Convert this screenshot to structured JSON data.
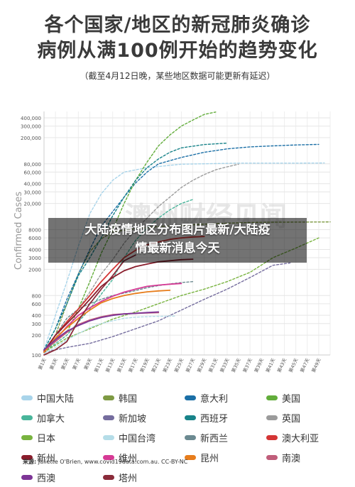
{
  "title": {
    "line1": "各个国家/地区的新冠肺炎确诊",
    "line2": "病例从满100例开始的趋势变化",
    "subtitle": "（截至4月12日晚，某些地区数据可能更新有延迟）"
  },
  "watermark_text": "澳洲财经见闻",
  "overlay": {
    "line1": "大陆疫情地区分布图片最新/大陆疫",
    "line2": "情最新消息今天"
  },
  "source": {
    "label": "来源:",
    "text": "Juliette O'Brien, www.covid19data.com.au. CC-BY-NC"
  },
  "chart_data": {
    "type": "line",
    "ylabel": "Confirmed Cases",
    "yscale": "log",
    "ylim": [
      100,
      500000
    ],
    "y_ticks": [
      {
        "value": 100,
        "label": "100"
      },
      {
        "value": 200,
        "label": "200"
      },
      {
        "value": 300,
        "label": "300"
      },
      {
        "value": 400,
        "label": "400"
      },
      {
        "value": 600,
        "label": "600"
      },
      {
        "value": 800,
        "label": "800"
      },
      {
        "value": 2000,
        "label": "2000"
      },
      {
        "value": 3000,
        "label": "3000"
      },
      {
        "value": 4000,
        "label": "4000"
      },
      {
        "value": 6000,
        "label": "6000"
      },
      {
        "value": 8000,
        "label": "8000"
      },
      {
        "value": 20000,
        "label": "20,000"
      },
      {
        "value": 30000,
        "label": "30,000"
      },
      {
        "value": 40000,
        "label": "40,000"
      },
      {
        "value": 60000,
        "label": "60,000"
      },
      {
        "value": 80000,
        "label": "80,000"
      },
      {
        "value": 200000,
        "label": "200,000"
      },
      {
        "value": 300000,
        "label": "300,000"
      },
      {
        "value": 400000,
        "label": "400,000"
      }
    ],
    "xlim": [
      1,
      51
    ],
    "x_ticks": [
      {
        "value": 1,
        "label": "第1天"
      },
      {
        "value": 3,
        "label": "第3天"
      },
      {
        "value": 5,
        "label": "第5天"
      },
      {
        "value": 7,
        "label": "第7天"
      },
      {
        "value": 9,
        "label": "第9天"
      },
      {
        "value": 11,
        "label": "第11天"
      },
      {
        "value": 13,
        "label": "第13天"
      },
      {
        "value": 15,
        "label": "第15天"
      },
      {
        "value": 17,
        "label": "第17天"
      },
      {
        "value": 19,
        "label": "第19天"
      },
      {
        "value": 21,
        "label": "第21天"
      },
      {
        "value": 23,
        "label": "第23天"
      },
      {
        "value": 25,
        "label": "第25天"
      },
      {
        "value": 27,
        "label": "第27天"
      },
      {
        "value": 29,
        "label": "第29天"
      },
      {
        "value": 31,
        "label": "第31天"
      },
      {
        "value": 33,
        "label": "第33天"
      },
      {
        "value": 35,
        "label": "第35天"
      },
      {
        "value": 37,
        "label": "第37天"
      },
      {
        "value": 39,
        "label": "第39天"
      },
      {
        "value": 41,
        "label": "第41天"
      },
      {
        "value": 43,
        "label": "第43天"
      },
      {
        "value": 45,
        "label": "第45天"
      },
      {
        "value": 47,
        "label": "第47天"
      },
      {
        "value": 49,
        "label": "第49天"
      }
    ],
    "grid": true,
    "legend_placement": "bottom",
    "series": [
      {
        "name": "中国大陆",
        "color": "#a8d4ea",
        "dashed": true,
        "points": [
          [
            1,
            120
          ],
          [
            3,
            400
          ],
          [
            5,
            1300
          ],
          [
            7,
            4500
          ],
          [
            9,
            14000
          ],
          [
            11,
            28000
          ],
          [
            13,
            45000
          ],
          [
            15,
            60000
          ],
          [
            19,
            70000
          ],
          [
            25,
            79000
          ],
          [
            35,
            82000
          ],
          [
            45,
            82000
          ],
          [
            50,
            82500
          ]
        ]
      },
      {
        "name": "韩国",
        "color": "#7e9a43",
        "dashed": true,
        "points": [
          [
            1,
            110
          ],
          [
            3,
            200
          ],
          [
            5,
            600
          ],
          [
            7,
            1700
          ],
          [
            9,
            3700
          ],
          [
            11,
            5800
          ],
          [
            13,
            7400
          ],
          [
            17,
            8300
          ],
          [
            21,
            8900
          ],
          [
            25,
            9300
          ],
          [
            31,
            9900
          ],
          [
            37,
            10300
          ],
          [
            41,
            10400
          ],
          [
            51,
            10500
          ]
        ]
      },
      {
        "name": "意大利",
        "color": "#1b6fa6",
        "dashed": true,
        "points": [
          [
            1,
            120
          ],
          [
            3,
            250
          ],
          [
            5,
            700
          ],
          [
            7,
            1700
          ],
          [
            9,
            4000
          ],
          [
            11,
            9000
          ],
          [
            13,
            15000
          ],
          [
            15,
            25000
          ],
          [
            17,
            41000
          ],
          [
            19,
            60000
          ],
          [
            21,
            80000
          ],
          [
            25,
            100000
          ],
          [
            29,
            120000
          ],
          [
            33,
            135000
          ],
          [
            37,
            145000
          ],
          [
            41,
            150000
          ],
          [
            45,
            155000
          ],
          [
            49,
            158000
          ]
        ]
      },
      {
        "name": "美国",
        "color": "#62ad3b",
        "dashed": true,
        "points": [
          [
            1,
            110
          ],
          [
            3,
            160
          ],
          [
            5,
            220
          ],
          [
            7,
            500
          ],
          [
            9,
            1300
          ],
          [
            11,
            3500
          ],
          [
            13,
            8000
          ],
          [
            15,
            20000
          ],
          [
            17,
            45000
          ],
          [
            19,
            85000
          ],
          [
            21,
            150000
          ],
          [
            23,
            220000
          ],
          [
            25,
            300000
          ],
          [
            27,
            370000
          ],
          [
            29,
            450000
          ],
          [
            31,
            490000
          ]
        ]
      },
      {
        "name": "加拿大",
        "color": "#49b59a",
        "dashed": true,
        "points": [
          [
            1,
            110
          ],
          [
            5,
            200
          ],
          [
            9,
            500
          ],
          [
            13,
            1400
          ],
          [
            15,
            3000
          ],
          [
            17,
            5500
          ],
          [
            19,
            8500
          ],
          [
            21,
            12000
          ],
          [
            23,
            16000
          ],
          [
            25,
            20000
          ],
          [
            27,
            23000
          ]
        ]
      },
      {
        "name": "新加坡",
        "color": "#756d9e",
        "dashed": true,
        "points": [
          [
            1,
            110
          ],
          [
            5,
            130
          ],
          [
            9,
            150
          ],
          [
            13,
            190
          ],
          [
            17,
            250
          ],
          [
            21,
            330
          ],
          [
            25,
            480
          ],
          [
            29,
            700
          ],
          [
            33,
            1000
          ],
          [
            37,
            1500
          ],
          [
            41,
            2300
          ],
          [
            44,
            2500
          ]
        ]
      },
      {
        "name": "西班牙",
        "color": "#188389",
        "dashed": true,
        "points": [
          [
            1,
            120
          ],
          [
            3,
            250
          ],
          [
            5,
            600
          ],
          [
            7,
            1600
          ],
          [
            9,
            3000
          ],
          [
            11,
            6000
          ],
          [
            13,
            13000
          ],
          [
            15,
            25000
          ],
          [
            17,
            45000
          ],
          [
            19,
            70000
          ],
          [
            21,
            95000
          ],
          [
            23,
            120000
          ],
          [
            25,
            140000
          ],
          [
            29,
            157000
          ],
          [
            33,
            165000
          ]
        ]
      },
      {
        "name": "英国",
        "color": "#9b9b9b",
        "dashed": true,
        "points": [
          [
            1,
            110
          ],
          [
            3,
            180
          ],
          [
            5,
            320
          ],
          [
            7,
            500
          ],
          [
            9,
            900
          ],
          [
            11,
            1700
          ],
          [
            13,
            2800
          ],
          [
            15,
            5000
          ],
          [
            17,
            8000
          ],
          [
            19,
            12000
          ],
          [
            21,
            18000
          ],
          [
            23,
            25000
          ],
          [
            25,
            35000
          ],
          [
            27,
            45000
          ],
          [
            29,
            55000
          ],
          [
            31,
            65000
          ],
          [
            33,
            72000
          ],
          [
            35,
            79000
          ]
        ]
      },
      {
        "name": "日本",
        "color": "#78b33f",
        "dashed": true,
        "points": [
          [
            1,
            110
          ],
          [
            5,
            180
          ],
          [
            9,
            250
          ],
          [
            13,
            350
          ],
          [
            17,
            450
          ],
          [
            21,
            600
          ],
          [
            25,
            800
          ],
          [
            29,
            1000
          ],
          [
            33,
            1300
          ],
          [
            37,
            1800
          ],
          [
            41,
            3000
          ],
          [
            45,
            4200
          ],
          [
            49,
            6000
          ]
        ]
      },
      {
        "name": "中国台湾",
        "color": "#b5dde8",
        "dashed": true,
        "points": [
          [
            1,
            105
          ],
          [
            3,
            130
          ],
          [
            5,
            170
          ],
          [
            7,
            210
          ],
          [
            9,
            260
          ],
          [
            11,
            300
          ],
          [
            13,
            330
          ],
          [
            15,
            360
          ],
          [
            17,
            375
          ],
          [
            20,
            385
          ],
          [
            24,
            390
          ]
        ]
      },
      {
        "name": "新西兰",
        "color": "#6c8a91",
        "dashed": true,
        "points": [
          [
            1,
            110
          ],
          [
            3,
            200
          ],
          [
            5,
            360
          ],
          [
            7,
            500
          ],
          [
            9,
            600
          ],
          [
            11,
            700
          ],
          [
            13,
            800
          ],
          [
            15,
            870
          ],
          [
            17,
            950
          ],
          [
            19,
            1050
          ],
          [
            21,
            1130
          ],
          [
            23,
            1200
          ],
          [
            25,
            1260
          ],
          [
            27,
            1300
          ]
        ]
      },
      {
        "name": "澳大利亚",
        "color": "#d43535",
        "dashed": false,
        "points": [
          [
            1,
            110
          ],
          [
            3,
            200
          ],
          [
            5,
            320
          ],
          [
            7,
            500
          ],
          [
            9,
            800
          ],
          [
            11,
            1300
          ],
          [
            13,
            2000
          ],
          [
            15,
            3000
          ],
          [
            17,
            3900
          ],
          [
            19,
            4700
          ],
          [
            21,
            5200
          ],
          [
            23,
            5700
          ],
          [
            25,
            6000
          ],
          [
            27,
            6200
          ],
          [
            29,
            6300
          ]
        ]
      },
      {
        "name": "新州",
        "color": "#8a1d2c",
        "dashed": false,
        "points": [
          [
            1,
            115
          ],
          [
            3,
            200
          ],
          [
            5,
            300
          ],
          [
            7,
            450
          ],
          [
            9,
            700
          ],
          [
            11,
            1100
          ],
          [
            13,
            1500
          ],
          [
            15,
            1900
          ],
          [
            17,
            2200
          ],
          [
            19,
            2400
          ],
          [
            21,
            2600
          ],
          [
            23,
            2700
          ],
          [
            25,
            2800
          ],
          [
            27,
            2850
          ]
        ]
      },
      {
        "name": "维州",
        "color": "#d63a95",
        "dashed": false,
        "points": [
          [
            1,
            110
          ],
          [
            3,
            170
          ],
          [
            5,
            270
          ],
          [
            7,
            400
          ],
          [
            9,
            520
          ],
          [
            11,
            650
          ],
          [
            13,
            780
          ],
          [
            15,
            900
          ],
          [
            17,
            1000
          ],
          [
            19,
            1100
          ],
          [
            21,
            1150
          ],
          [
            23,
            1190
          ],
          [
            25,
            1220
          ]
        ]
      },
      {
        "name": "昆州",
        "color": "#e77d1c",
        "dashed": false,
        "points": [
          [
            1,
            110
          ],
          [
            3,
            180
          ],
          [
            5,
            260
          ],
          [
            7,
            360
          ],
          [
            9,
            480
          ],
          [
            11,
            620
          ],
          [
            13,
            720
          ],
          [
            15,
            800
          ],
          [
            17,
            860
          ],
          [
            19,
            910
          ],
          [
            21,
            940
          ],
          [
            23,
            960
          ]
        ]
      },
      {
        "name": "南澳",
        "color": "#c05e7a",
        "dashed": false,
        "points": [
          [
            1,
            120
          ],
          [
            3,
            160
          ],
          [
            5,
            220
          ],
          [
            7,
            290
          ],
          [
            9,
            340
          ],
          [
            11,
            380
          ],
          [
            13,
            410
          ],
          [
            15,
            420
          ],
          [
            17,
            430
          ],
          [
            19,
            435
          ],
          [
            21,
            440
          ]
        ]
      },
      {
        "name": "西澳",
        "color": "#7d3596",
        "dashed": false,
        "points": [
          [
            1,
            120
          ],
          [
            3,
            170
          ],
          [
            5,
            230
          ],
          [
            7,
            280
          ],
          [
            9,
            330
          ],
          [
            11,
            370
          ],
          [
            13,
            400
          ],
          [
            15,
            420
          ],
          [
            17,
            430
          ],
          [
            19,
            440
          ],
          [
            21,
            450
          ]
        ]
      },
      {
        "name": "塔州",
        "color": "#8a2b3a",
        "dashed": false,
        "points": [
          [
            1,
            100
          ],
          [
            3,
            120
          ],
          [
            5,
            160
          ],
          [
            7,
            330
          ],
          [
            9,
            600
          ],
          [
            11,
            1000
          ],
          [
            13,
            1600
          ],
          [
            15,
            2700
          ],
          [
            17,
            3300
          ]
        ]
      }
    ]
  }
}
